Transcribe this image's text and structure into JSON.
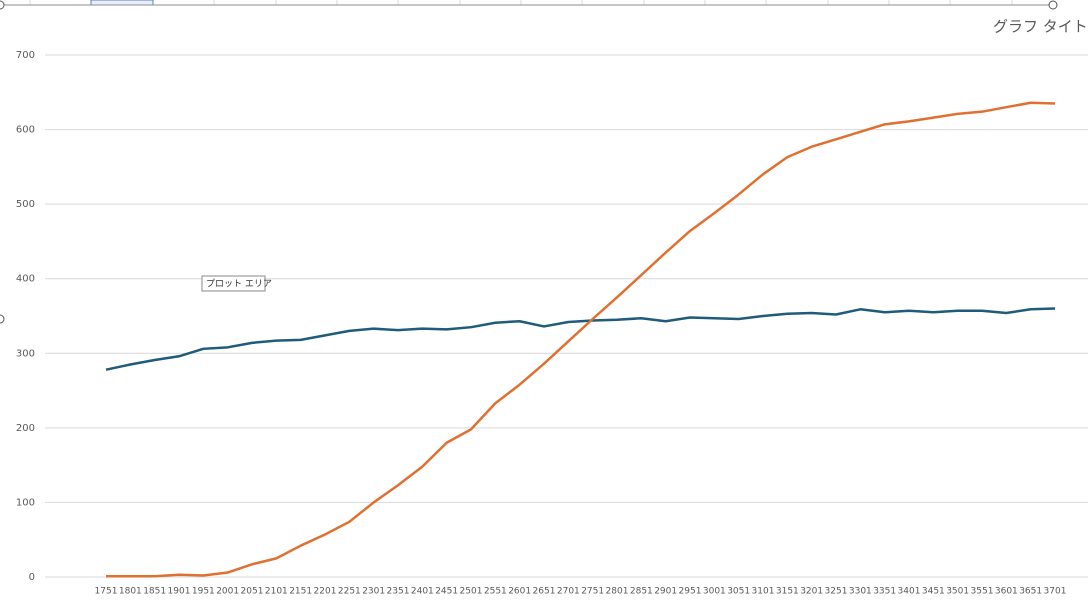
{
  "chart_data": {
    "type": "line",
    "title": "グラフ タイト",
    "annotations": [
      "プロット エリア"
    ],
    "categories": [
      "1751",
      "1801",
      "1851",
      "1901",
      "1951",
      "2001",
      "2051",
      "2101",
      "2151",
      "2201",
      "2251",
      "2301",
      "2351",
      "2401",
      "2451",
      "2501",
      "2551",
      "2601",
      "2651",
      "2701",
      "2751",
      "2801",
      "2851",
      "2901",
      "2951",
      "3001",
      "3051",
      "3101",
      "3151",
      "3201",
      "3251",
      "3301",
      "3351",
      "3401",
      "3451",
      "3501",
      "3551",
      "3601",
      "3651",
      "3701"
    ],
    "series": [
      {
        "color": "#1f5b7a",
        "values": [
          278,
          285,
          291,
          296,
          306,
          308,
          314,
          317,
          318,
          324,
          330,
          333,
          331,
          333,
          332,
          335,
          341,
          343,
          336,
          342,
          344,
          345,
          347,
          343,
          348,
          347,
          346,
          350,
          353,
          354,
          352,
          359,
          355,
          357,
          355,
          357,
          357,
          354,
          359,
          360
        ]
      },
      {
        "color": "#e07030",
        "values": [
          1,
          1,
          1,
          3,
          2,
          6,
          17,
          25,
          42,
          57,
          74,
          100,
          123,
          148,
          180,
          198,
          233,
          258,
          286,
          316,
          346,
          375,
          405,
          435,
          464,
          488,
          513,
          540,
          563,
          577,
          587,
          597,
          607,
          611,
          616,
          621,
          624,
          630,
          636,
          635
        ]
      }
    ],
    "ylim": [
      0,
      700
    ],
    "yticks": [
      0,
      100,
      200,
      300,
      400,
      500,
      600,
      700
    ],
    "grid": true
  }
}
